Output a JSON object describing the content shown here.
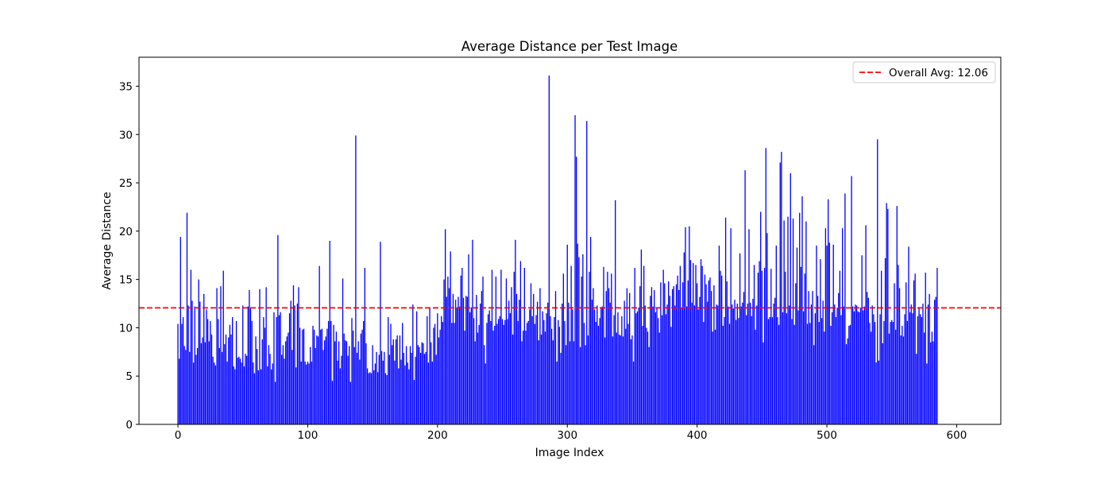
{
  "chart_data": {
    "type": "bar",
    "title": "Average Distance per Test Image",
    "xlabel": "Image Index",
    "ylabel": "Average Distance",
    "xlim": [
      -30,
      634
    ],
    "ylim": [
      0,
      38
    ],
    "x_ticks": [
      0,
      100,
      200,
      300,
      400,
      500,
      600
    ],
    "y_ticks": [
      0,
      5,
      10,
      15,
      20,
      25,
      30,
      35
    ],
    "bar_color": "#0000ff",
    "grid": false,
    "series": [
      {
        "x_start": 0,
        "values": [
          10.4,
          6.8,
          19.4,
          10.4,
          11.1,
          8.1,
          7.7,
          21.9,
          12.3,
          7.5,
          16.0,
          12.8,
          6.4,
          12.2,
          7.2,
          7.9,
          15.0,
          12.7,
          8.4,
          9.0,
          13.5,
          8.5,
          11.9,
          10.9,
          8.6,
          10.7,
          9.3,
          7.0,
          6.4,
          6.1,
          14.1,
          10.9,
          7.9,
          14.3,
          7.5,
          15.9,
          8.3,
          9.3,
          6.5,
          9.0,
          10.3,
          9.3,
          11.1,
          6.0,
          5.7,
          10.7,
          6.9,
          7.0,
          6.8,
          6.4,
          12.3,
          6.0,
          7.3,
          7.1,
          12.2,
          13.9,
          12.0,
          10.7,
          6.4,
          5.3,
          9.1,
          7.8,
          5.6,
          14.0,
          5.7,
          8.8,
          11.1,
          10.0,
          14.2,
          6.0,
          8.2,
          7.3,
          5.7,
          6.3,
          11.6,
          4.4,
          11.1,
          19.6,
          11.3,
          11.6,
          7.2,
          8.2,
          6.8,
          8.6,
          9.1,
          9.5,
          11.5,
          12.8,
          7.7,
          14.4,
          12.3,
          5.9,
          12.5,
          14.2,
          10.0,
          6.5,
          9.8,
          9.9,
          6.5,
          6.2,
          6.5,
          6.3,
          8.0,
          6.5,
          10.2,
          9.8,
          7.9,
          9.2,
          9.1,
          16.4,
          9.8,
          9.9,
          7.7,
          8.7,
          9.1,
          9.9,
          10.7,
          19.0,
          10.7,
          4.5,
          10.3,
          8.6,
          9.6,
          6.6,
          8.6,
          5.8,
          7.1,
          15.1,
          9.4,
          8.7,
          8.6,
          7.1,
          8.1,
          4.4,
          11.0,
          9.7,
          8.0,
          29.9,
          7.4,
          8.6,
          6.7,
          9.4,
          9.8,
          10.7,
          16.2,
          8.4,
          5.8,
          5.3,
          5.4,
          5.3,
          8.2,
          5.6,
          6.3,
          7.5,
          5.4,
          7.2,
          18.9,
          7.6,
          6.6,
          7.5,
          5.3,
          5.1,
          11.1,
          7.2,
          10.4,
          8.2,
          8.8,
          6.6,
          8.8,
          9.2,
          5.8,
          9.2,
          6.7,
          10.5,
          7.4,
          6.1,
          8.1,
          6.4,
          5.7,
          8.1,
          7.4,
          12.4,
          4.6,
          7.0,
          11.7,
          8.2,
          8.0,
          7.4,
          8.5,
          8.4,
          7.3,
          7.5,
          11.2,
          6.4,
          12.1,
          8.5,
          6.5,
          10.0,
          10.4,
          7.2,
          11.5,
          9.0,
          9.8,
          11.2,
          10.6,
          15.0,
          20.2,
          13.2,
          15.3,
          14.1,
          17.9,
          10.5,
          13.5,
          10.5,
          12.9,
          12.1,
          13.2,
          12.2,
          15.4,
          16.2,
          13.1,
          9.7,
          13.3,
          13.2,
          17.6,
          11.6,
          12.1,
          19.1,
          11.0,
          8.6,
          13.4,
          9.5,
          10.3,
          12.5,
          13.8,
          15.3,
          8.2,
          6.3,
          10.5,
          11.4,
          11.8,
          10.7,
          16.0,
          9.7,
          10.2,
          15.3,
          10.4,
          10.9,
          11.2,
          16.0,
          10.9,
          10.3,
          10.8,
          15.1,
          10.9,
          12.8,
          11.5,
          14.2,
          9.3,
          15.8,
          19.1,
          13.5,
          10.7,
          12.9,
          16.9,
          8.6,
          9.7,
          16.2,
          9.7,
          10.5,
          10.7,
          11.9,
          14.6,
          11.2,
          13.5,
          10.4,
          11.3,
          12.7,
          8.7,
          14.1,
          9.3,
          11.7,
          10.8,
          9.6,
          11.5,
          12.6,
          36.1,
          11.2,
          9.9,
          8.7,
          11.1,
          13.8,
          6.5,
          10.8,
          10.1,
          7.4,
          12.5,
          15.6,
          10.7,
          8.2,
          18.6,
          12.6,
          8.6,
          16.4,
          11.9,
          8.6,
          32.0,
          27.7,
          18.7,
          17.3,
          8.0,
          15.3,
          17.6,
          10.5,
          8.2,
          31.4,
          9.2,
          15.8,
          19.4,
          12.9,
          14.1,
          11.9,
          10.6,
          12.3,
          10.2,
          11.0,
          12.0,
          12.2,
          16.3,
          9.0,
          13.8,
          15.8,
          14.1,
          12.6,
          15.6,
          9.1,
          11.3,
          23.2,
          9.5,
          11.6,
          9.3,
          9.2,
          11.2,
          9.1,
          12.8,
          9.9,
          14.1,
          10.4,
          13.6,
          8.8,
          9.2,
          6.5,
          16.2,
          11.5,
          11.7,
          12.1,
          14.3,
          18.1,
          10.2,
          16.4,
          12.3,
          10.0,
          9.6,
          8.0,
          13.3,
          14.2,
          12.2,
          13.9,
          11.6,
          12.1,
          11.0,
          9.5,
          14.7,
          11.3,
          16.0,
          14.6,
          11.4,
          12.4,
          14.8,
          13.3,
          10.1,
          14.0,
          14.3,
          12.3,
          14.5,
          15.4,
          13.9,
          16.4,
          12.0,
          14.7,
          17.8,
          20.4,
          12.2,
          14.9,
          20.5,
          17.0,
          12.6,
          16.7,
          12.3,
          16.5,
          14.6,
          11.9,
          13.2,
          17.1,
          16.4,
          10.6,
          15.5,
          14.5,
          12.7,
          14.9,
          15.2,
          13.8,
          9.6,
          14.4,
          9.8,
          12.4,
          12.3,
          18.5,
          15.9,
          15.4,
          10.2,
          11.1,
          21.4,
          14.8,
          12.2,
          10.4,
          20.3,
          12.4,
          12.0,
          12.9,
          10.8,
          12.5,
          11.0,
          17.7,
          12.2,
          12.6,
          13.7,
          26.3,
          11.3,
          12.5,
          20.2,
          12.6,
          11.2,
          13.0,
          16.5,
          9.8,
          12.3,
          15.7,
          16.9,
          22.0,
          15.9,
          8.5,
          16.2,
          28.6,
          19.8,
          10.9,
          11.1,
          16.1,
          11.1,
          12.5,
          13.1,
          18.5,
          11.1,
          10.3,
          27.1,
          28.2,
          11.6,
          21.1,
          15.8,
          11.5,
          21.5,
          12.3,
          26.0,
          10.9,
          21.3,
          10.3,
          14.6,
          18.3,
          11.8,
          21.9,
          16.3,
          23.6,
          11.7,
          15.6,
          21.0,
          10.4,
          13.8,
          10.5,
          12.4,
          13.8,
          8.2,
          11.5,
          18.5,
          13.3,
          10.6,
          17.1,
          11.0,
          12.8,
          9.6,
          20.3,
          18.5,
          23.3,
          18.8,
          10.2,
          11.6,
          18.6,
          12.4,
          11.1,
          12.1,
          13.6,
          15.9,
          11.3,
          20.3,
          12.2,
          23.9,
          8.3,
          8.9,
          10.2,
          10.3,
          25.7,
          12.2,
          11.7,
          12.4,
          12.3,
          11.7,
          11.6,
          12.1,
          17.5,
          11.8,
          12.2,
          20.6,
          13.7,
          13.1,
          10.5,
          9.6,
          12.3,
          11.4,
          10.6,
          6.4,
          29.5,
          6.6,
          11.4,
          15.9,
          8.4,
          10.7,
          17.2,
          22.9,
          22.3,
          9.4,
          10.6,
          10.8,
          10.6,
          14.6,
          9.8,
          22.6,
          16.5,
          14.1,
          9.2,
          10.2,
          9.1,
          11.4,
          14.7,
          10.7,
          18.4,
          11.6,
          12.4,
          11.5,
          14.9,
          15.6,
          7.3,
          11.2,
          12.1,
          11.4,
          11.1,
          12.5,
          9.5,
          15.7,
          6.3,
          12.4,
          13.5,
          8.5,
          9.6,
          8.6,
          12.9,
          13.2,
          16.2
        ]
      },
      {
        "name": "Overall Avg: 12.06",
        "type": "hline",
        "value": 12.06,
        "color": "#ff0000"
      }
    ],
    "legend": {
      "placement": "top-right",
      "label": "Overall Avg: 12.06"
    }
  }
}
